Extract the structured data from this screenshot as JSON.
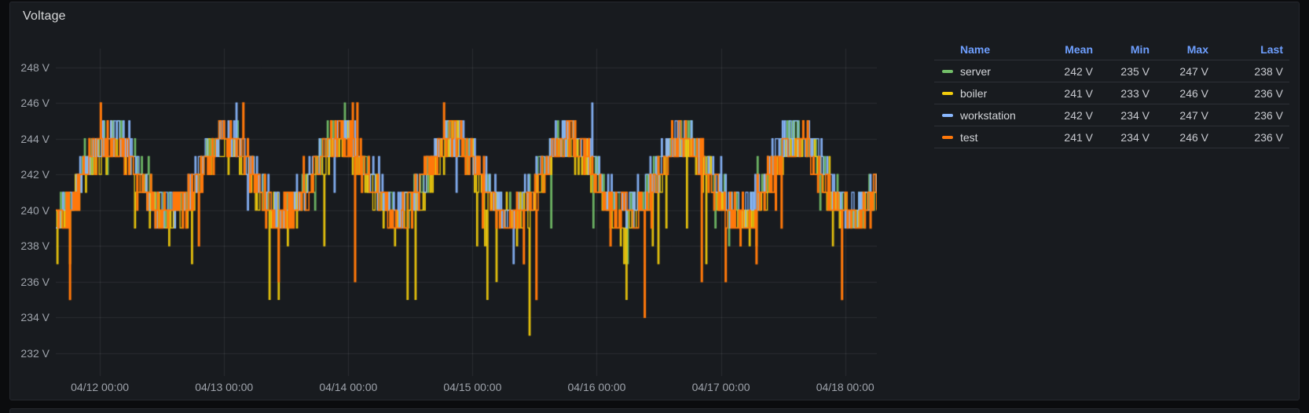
{
  "panel": {
    "title": "Voltage"
  },
  "legend": {
    "headers": [
      "Name",
      "Mean",
      "Min",
      "Max",
      "Last"
    ],
    "rows": [
      {
        "name": "server",
        "color": "#73BF69",
        "mean": "242 V",
        "min": "235 V",
        "max": "247 V",
        "last": "238 V"
      },
      {
        "name": "boiler",
        "color": "#F2CC0C",
        "mean": "241 V",
        "min": "233 V",
        "max": "246 V",
        "last": "236 V"
      },
      {
        "name": "workstation",
        "color": "#8AB8FF",
        "mean": "242 V",
        "min": "234 V",
        "max": "247 V",
        "last": "236 V"
      },
      {
        "name": "test",
        "color": "#FF780A",
        "mean": "241 V",
        "min": "234 V",
        "max": "246 V",
        "last": "236 V"
      }
    ]
  },
  "chart_data": {
    "type": "line",
    "style": "stepped-staircase voltage traces, integer-volt quantized, dense noisy daily cycle",
    "title": "Voltage",
    "xlabel": "",
    "ylabel": "",
    "unit": "V",
    "grid": true,
    "legend_position": "right-table",
    "ylim": [
      230.4,
      249.3
    ],
    "x_range_days": [
      -0.355,
      6.255
    ],
    "y_ticks": [
      {
        "value": 248,
        "label": "248 V"
      },
      {
        "value": 246,
        "label": "246 V"
      },
      {
        "value": 244,
        "label": "244 V"
      },
      {
        "value": 242,
        "label": "242 V"
      },
      {
        "value": 240,
        "label": "240 V"
      },
      {
        "value": 238,
        "label": "238 V"
      },
      {
        "value": 236,
        "label": "236 V"
      },
      {
        "value": 234,
        "label": "234 V"
      },
      {
        "value": 232,
        "label": "232 V"
      }
    ],
    "x_ticks": [
      {
        "day_offset": 0,
        "label": "04/12 00:00"
      },
      {
        "day_offset": 1,
        "label": "04/13 00:00"
      },
      {
        "day_offset": 2,
        "label": "04/14 00:00"
      },
      {
        "day_offset": 3,
        "label": "04/15 00:00"
      },
      {
        "day_offset": 4,
        "label": "04/16 00:00"
      },
      {
        "day_offset": 5,
        "label": "04/17 00:00"
      },
      {
        "day_offset": 6,
        "label": "04/18 00:00"
      }
    ],
    "grid_color": "rgba(204,204,220,0.10)",
    "pattern": {
      "base_volts": 241.7,
      "amplitude_volts": 2.1,
      "period_days": 0.92,
      "peak_day_offset": 0.09,
      "quantize_volts": 1,
      "samples": 720
    },
    "series": [
      {
        "name": "server",
        "color": "#73BF69",
        "mean": 242,
        "min": 235,
        "max": 247,
        "last": 238,
        "seed": 7,
        "bias": 0.3,
        "noise": 1.0,
        "dip_prob": 0.01,
        "dip_depth": 3.5,
        "spike_prob": 0.01,
        "spike_height": 2.0,
        "line_width": 1.3
      },
      {
        "name": "boiler",
        "color": "#F2CC0C",
        "mean": 241,
        "min": 233,
        "max": 246,
        "last": 236,
        "seed": 13,
        "bias": -0.2,
        "noise": 1.1,
        "dip_prob": 0.028,
        "dip_depth": 5.5,
        "spike_prob": 0.005,
        "spike_height": 1.5,
        "line_width": 1.3
      },
      {
        "name": "workstation",
        "color": "#8AB8FF",
        "mean": 242,
        "min": 234,
        "max": 247,
        "last": 236,
        "seed": 29,
        "bias": 0.4,
        "noise": 1.1,
        "dip_prob": 0.012,
        "dip_depth": 4.0,
        "spike_prob": 0.02,
        "spike_height": 2.5,
        "line_width": 1.3
      },
      {
        "name": "test",
        "color": "#FF780A",
        "mean": 241,
        "min": 234,
        "max": 246,
        "last": 236,
        "seed": 42,
        "bias": 0.0,
        "noise": 1.2,
        "dip_prob": 0.028,
        "dip_depth": 5.0,
        "spike_prob": 0.012,
        "spike_height": 2.0,
        "line_width": 1.6
      }
    ]
  },
  "colors": {
    "page_bg": "#0b0c0e",
    "panel_bg": "#181b1f",
    "panel_border": "#26282e",
    "title_text": "#d8d9da",
    "axis_text": "#9ea3ab",
    "legend_header_text": "#6e9fff",
    "legend_value_text": "#c9cbd1"
  }
}
